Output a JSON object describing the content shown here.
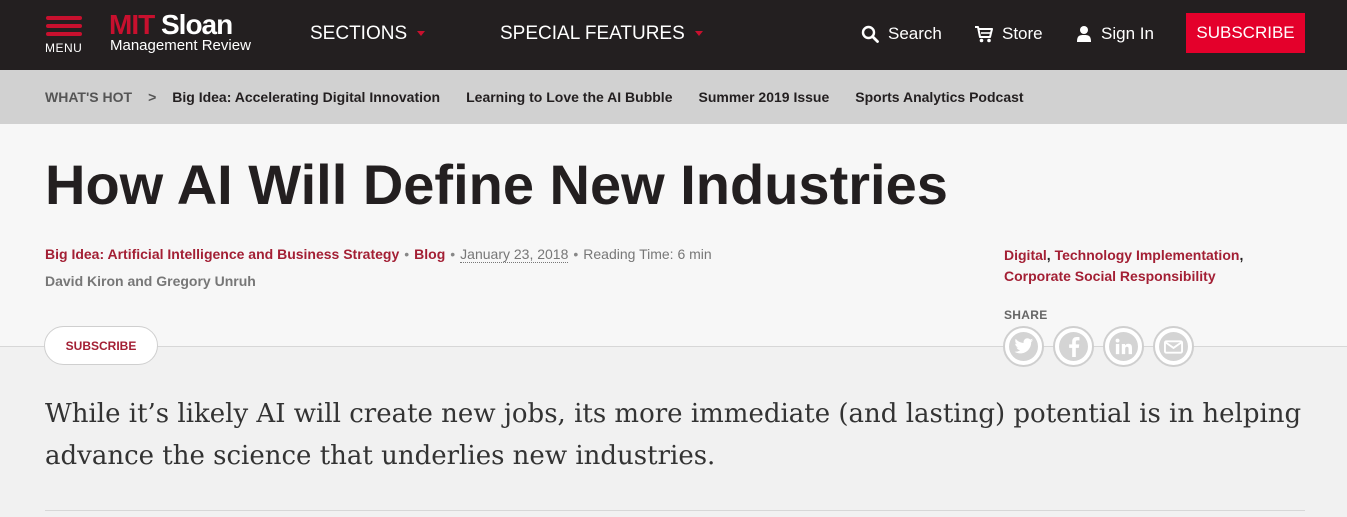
{
  "header": {
    "menu_label": "MENU",
    "logo": {
      "mit": "MIT",
      "sloan": "Sloan",
      "subtitle": "Management Review"
    },
    "nav": [
      {
        "label": "SECTIONS"
      },
      {
        "label": "SPECIAL FEATURES"
      }
    ],
    "search_label": "Search",
    "store_label": "Store",
    "signin_label": "Sign In",
    "subscribe_label": "SUBSCRIBE"
  },
  "whats_hot": {
    "label": "WHAT'S HOT",
    "arrow": ">",
    "links": [
      "Big Idea: Accelerating Digital Innovation",
      "Learning to Love the AI Bubble",
      "Summer 2019 Issue",
      "Sports Analytics Podcast"
    ]
  },
  "article": {
    "title": "How AI Will Define New Industries",
    "section": "Big Idea: Artificial Intelligence and Business Strategy",
    "type": "Blog",
    "date": "January 23, 2018",
    "reading_time": "Reading Time: 6 min",
    "authors": "David Kiron and Gregory Unruh",
    "topics": [
      "Digital",
      "Technology Implementation",
      "Corporate Social Responsibility"
    ],
    "share_label": "SHARE",
    "share_icons": [
      "twitter-icon",
      "facebook-icon",
      "linkedin-icon",
      "email-icon"
    ],
    "subscribe_label": "SUBSCRIBE",
    "dek": "While it’s likely AI will create new jobs, its more immediate (and lasting) potential is in helping advance the science that underlies new industries."
  },
  "colors": {
    "nav_bg": "#231f20",
    "accent_red": "#e4002b",
    "link_red": "#a31f34",
    "hotbar_bg": "#d1d1d1"
  }
}
